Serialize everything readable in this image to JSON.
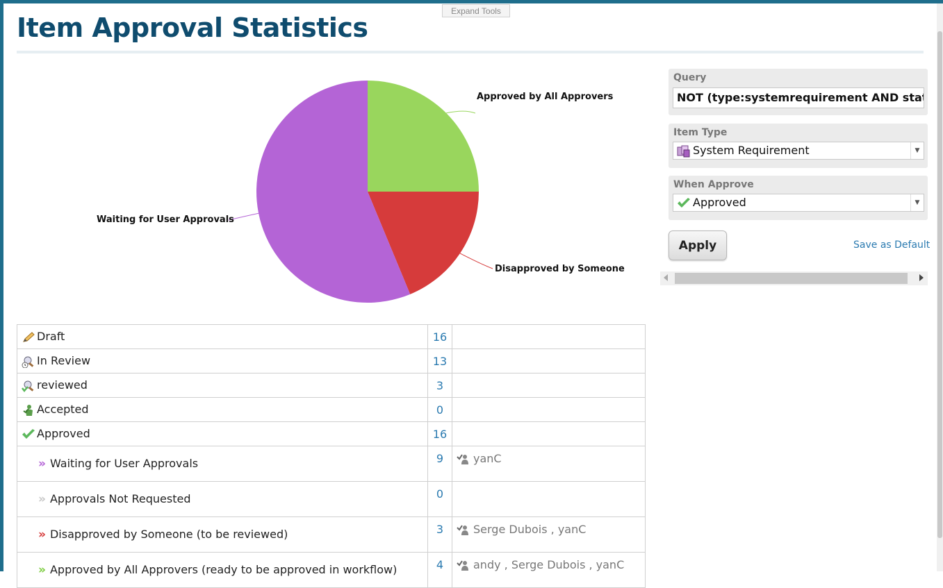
{
  "header": {
    "expand_tools": "Expand Tools",
    "title": "Item Approval Statistics"
  },
  "chart_data": {
    "type": "pie",
    "slices": [
      {
        "label": "Approved by All Approvers",
        "value": 4,
        "color": "#99d65d"
      },
      {
        "label": "Disapproved by Someone",
        "value": 3,
        "color": "#d63b3b"
      },
      {
        "label": "Waiting for User Approvals",
        "value": 9,
        "color": "#b464d6"
      }
    ]
  },
  "table": {
    "rows": [
      {
        "kind": "main",
        "icon": "pencil-icon",
        "label": "Draft",
        "count": "16",
        "users": ""
      },
      {
        "kind": "main",
        "icon": "magnifier-clock-icon",
        "label": "In Review",
        "count": "13",
        "users": ""
      },
      {
        "kind": "main",
        "icon": "magnifier-check-icon",
        "label": "reviewed",
        "count": "3",
        "users": ""
      },
      {
        "kind": "main",
        "icon": "person-accept-icon",
        "label": "Accepted",
        "count": "0",
        "users": ""
      },
      {
        "kind": "main",
        "icon": "checkmark-icon",
        "label": "Approved",
        "count": "16",
        "users": ""
      },
      {
        "kind": "sub",
        "chev_color": "#b464d6",
        "label": "Waiting for User Approvals",
        "count": "9",
        "users": "yanC"
      },
      {
        "kind": "sub",
        "chev_color": "#c8c8c8",
        "label": "Approvals Not Requested",
        "count": "0",
        "users": ""
      },
      {
        "kind": "sub",
        "chev_color": "#d63b3b",
        "label": "Disapproved by Someone (to be reviewed)",
        "count": "3",
        "users": "Serge Dubois , yanC"
      },
      {
        "kind": "sub",
        "chev_color": "#7ccc3f",
        "label": "Approved by All Approvers (ready to be approved in workflow)",
        "count": "4",
        "users": "andy , Serge Dubois , yanC"
      }
    ]
  },
  "query": {
    "label": "Query",
    "value": "NOT (type:systemrequirement AND status:ap"
  },
  "item_type": {
    "label": "Item Type",
    "value": "System Requirement"
  },
  "when_approve": {
    "label": "When Approve",
    "value": "Approved"
  },
  "actions": {
    "apply": "Apply",
    "save_default": "Save as Default"
  }
}
